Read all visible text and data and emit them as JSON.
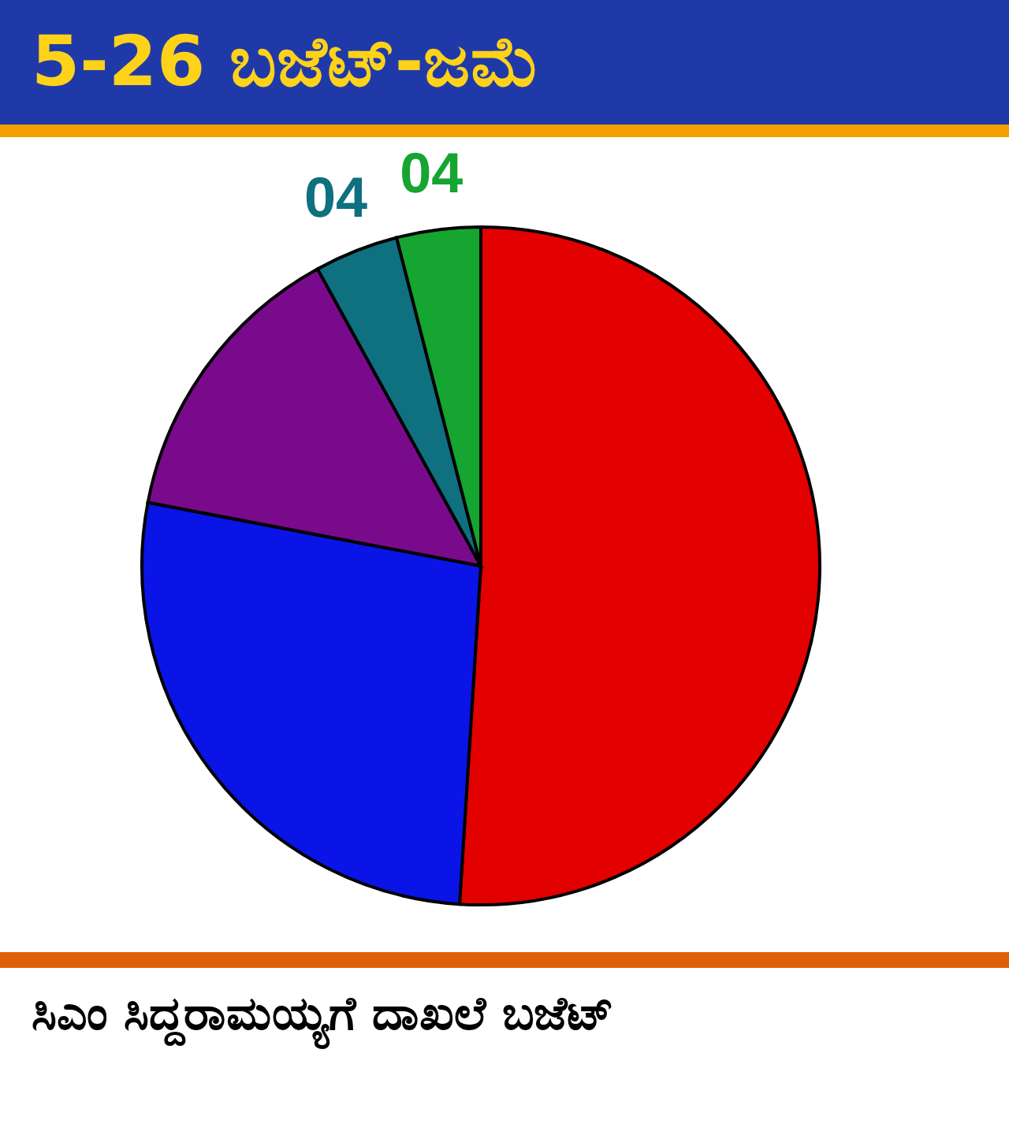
{
  "chart_data": {
    "type": "pie",
    "title": "5-26 ಬಜೆಟ್-ಜಮೆ",
    "categories": [
      null,
      null,
      null,
      null,
      null
    ],
    "values": [
      51,
      27,
      14,
      4,
      4
    ],
    "colors": [
      "#e30000",
      "#0a14e6",
      "#7a0a8c",
      "#0f7080",
      "#15a530"
    ],
    "value_labels": [
      null,
      null,
      null,
      "04",
      "04"
    ],
    "legend": false,
    "annotations": [
      "ಸಿಎಂ ಸಿದ್ದರಾಮಯ್ಯಗೆ ದಾಖಲೆ ಬಜೆಟ್"
    ]
  }
}
